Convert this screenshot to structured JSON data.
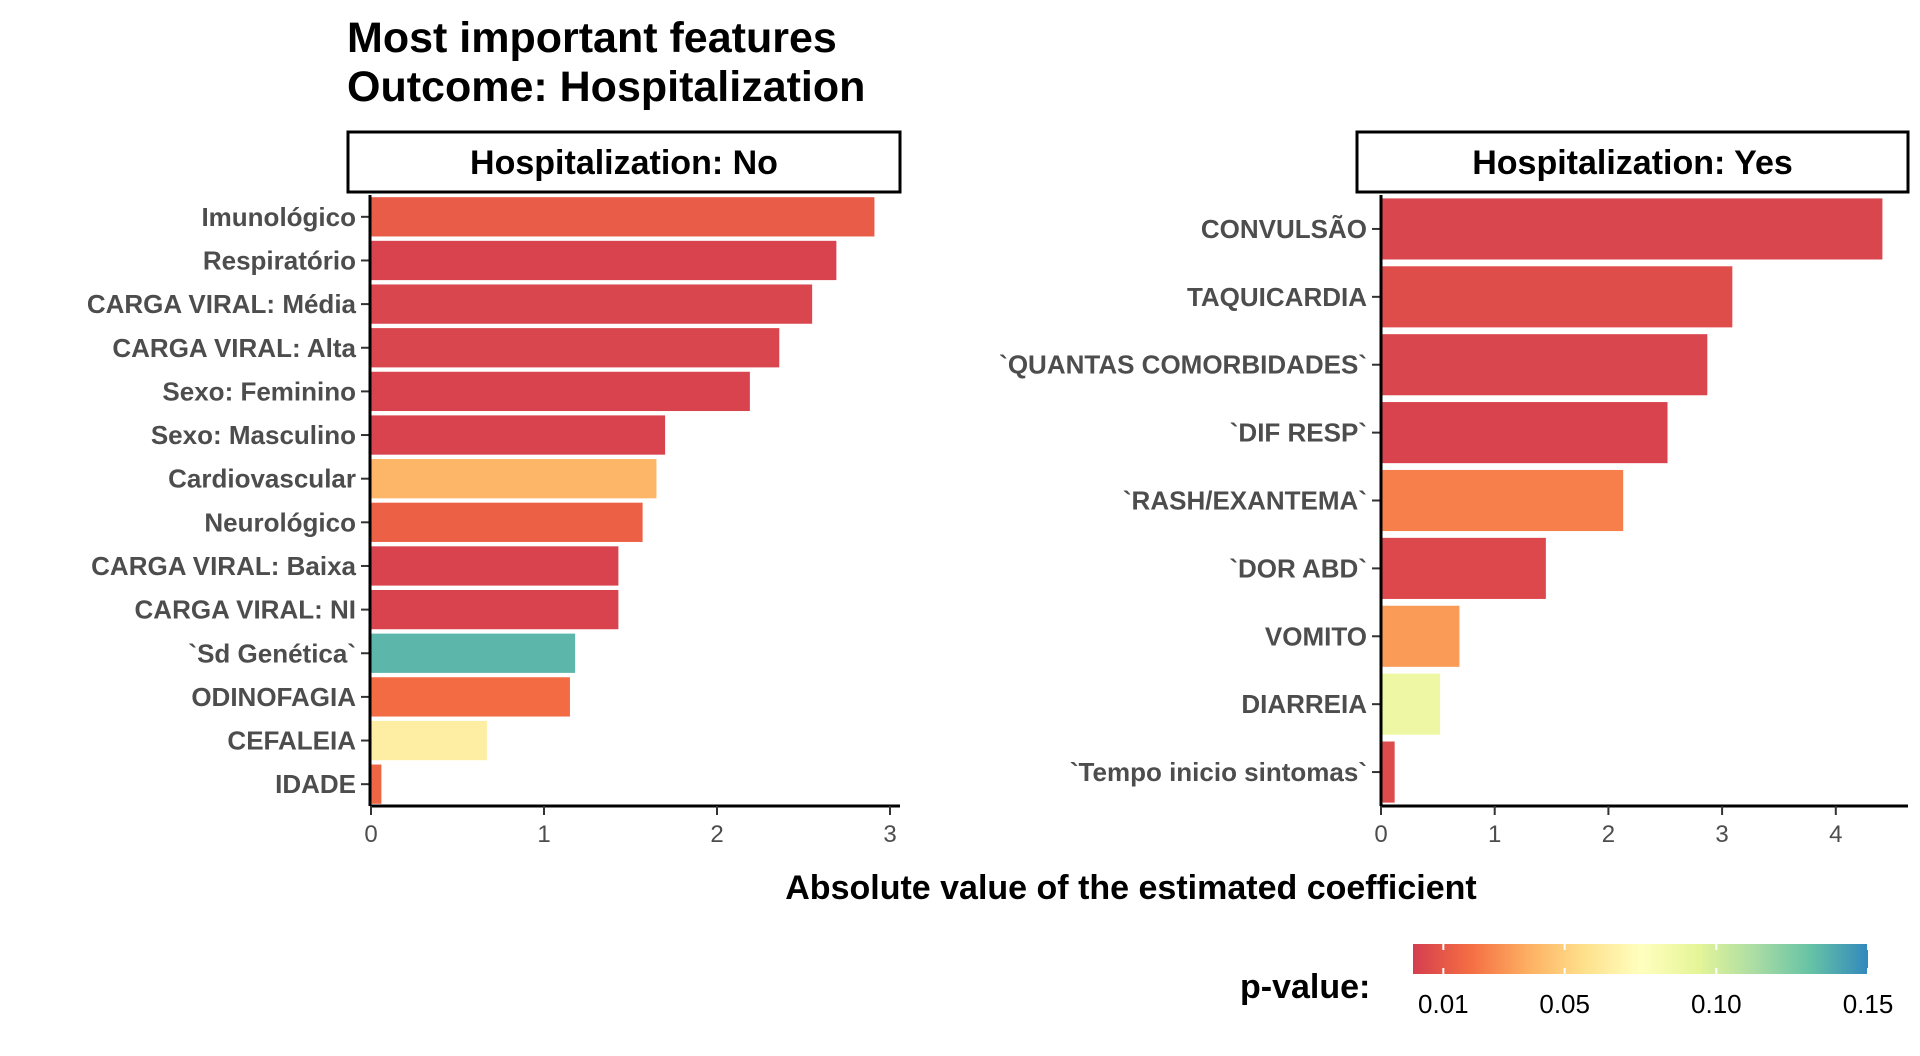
{
  "chart_data": {
    "type": "bar",
    "orientation": "horizontal",
    "title": [
      "Most important features",
      "Outcome: Hospitalization"
    ],
    "xlabel": "Absolute value of the estimated coefficient",
    "legend": {
      "title": "p-value:",
      "position": "bottom-right",
      "ticks": [
        "0.01",
        "0.05",
        "0.10",
        "0.15"
      ],
      "tick_values": [
        0.01,
        0.05,
        0.1,
        0.15
      ],
      "range": [
        0.0,
        0.15
      ],
      "colors": [
        "#d53e4f",
        "#f46d43",
        "#fdae61",
        "#fee08b",
        "#ffffbf",
        "#e6f598",
        "#abdda4",
        "#66c2a5",
        "#3288bd"
      ]
    },
    "panels": [
      {
        "strip": "Hospitalization: No",
        "xlim": [
          0,
          3.05
        ],
        "xticks": [
          0,
          1,
          2,
          3
        ],
        "bars": [
          {
            "label": "Imunológico",
            "value": 2.91,
            "p": 0.012
          },
          {
            "label": "Respiratório",
            "value": 2.69,
            "p": 0.002
          },
          {
            "label": "CARGA VIRAL: Média",
            "value": 2.55,
            "p": 0.003
          },
          {
            "label": "CARGA VIRAL: Alta",
            "value": 2.36,
            "p": 0.003
          },
          {
            "label": "Sexo: Feminino",
            "value": 2.19,
            "p": 0.002
          },
          {
            "label": "Sexo: Masculino",
            "value": 1.7,
            "p": 0.002
          },
          {
            "label": "Cardiovascular",
            "value": 1.65,
            "p": 0.04
          },
          {
            "label": "Neurológico",
            "value": 1.57,
            "p": 0.014
          },
          {
            "label": "CARGA VIRAL: Baixa",
            "value": 1.43,
            "p": 0.002
          },
          {
            "label": "CARGA VIRAL: NI",
            "value": 1.43,
            "p": 0.002
          },
          {
            "label": "`Sd Genética`",
            "value": 1.18,
            "p": 0.135
          },
          {
            "label": "ODINOFAGIA",
            "value": 1.15,
            "p": 0.018
          },
          {
            "label": "CEFALEIA",
            "value": 0.67,
            "p": 0.065
          },
          {
            "label": "IDADE",
            "value": 0.06,
            "p": 0.016
          }
        ]
      },
      {
        "strip": "Hospitalization: Yes",
        "xlim": [
          0,
          4.45
        ],
        "xticks": [
          0,
          1,
          2,
          3,
          4
        ],
        "bars": [
          {
            "label": "CONVULSÃO",
            "value": 4.41,
            "p": 0.003
          },
          {
            "label": "TAQUICARDIA",
            "value": 3.09,
            "p": 0.006
          },
          {
            "label": "`QUANTAS COMORBIDADES`",
            "value": 2.87,
            "p": 0.003
          },
          {
            "label": "`DIF RESP`",
            "value": 2.52,
            "p": 0.002
          },
          {
            "label": "`RASH/EXANTEMA`",
            "value": 2.13,
            "p": 0.024
          },
          {
            "label": "`DOR ABD`",
            "value": 1.45,
            "p": 0.004
          },
          {
            "label": "VOMITO",
            "value": 0.69,
            "p": 0.032
          },
          {
            "label": "DIARREIA",
            "value": 0.52,
            "p": 0.088
          },
          {
            "label": "`Tempo inicio sintomas`",
            "value": 0.12,
            "p": 0.005
          }
        ]
      }
    ]
  }
}
